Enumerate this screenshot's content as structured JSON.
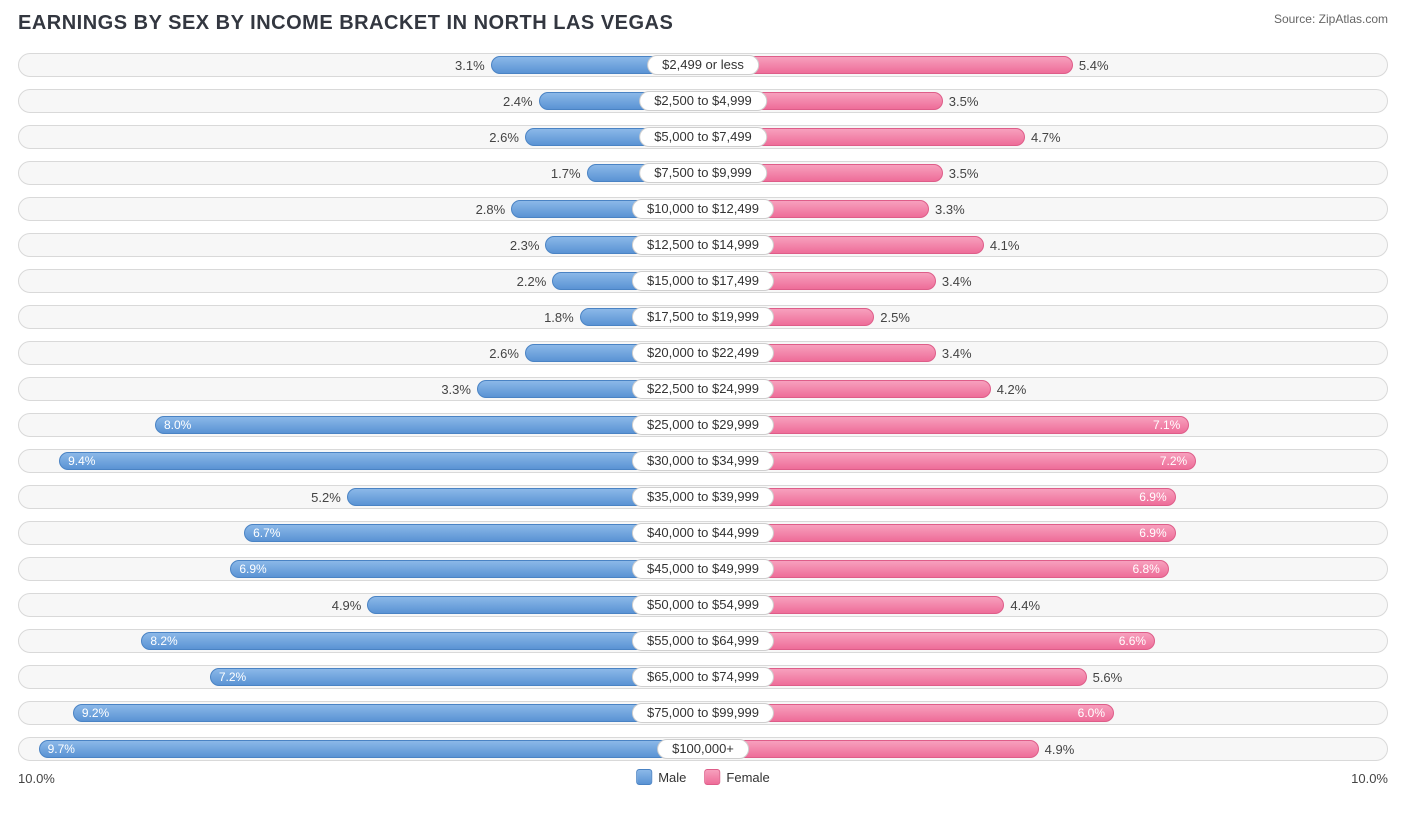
{
  "title": "EARNINGS BY SEX BY INCOME BRACKET IN NORTH LAS VEGAS",
  "source": "Source: ZipAtlas.com",
  "axis_max": 10.0,
  "axis_label_left": "10.0%",
  "axis_label_right": "10.0%",
  "legend": {
    "male": "Male",
    "female": "Female"
  },
  "colors": {
    "male_fill_top": "#8bb8e8",
    "male_fill_bottom": "#5a93d4",
    "male_border": "#4a83c4",
    "female_fill_top": "#f7a0bd",
    "female_fill_bottom": "#ee6d99",
    "female_border": "#de5d89",
    "track_bg": "#f7f7f7",
    "track_border": "#d9d9d9",
    "label_bg": "#ffffff",
    "label_border": "#cfcfcf",
    "text": "#333740"
  },
  "inner_label_threshold": 6.0,
  "rows": [
    {
      "label": "$2,499 or less",
      "male": 3.1,
      "female": 5.4
    },
    {
      "label": "$2,500 to $4,999",
      "male": 2.4,
      "female": 3.5
    },
    {
      "label": "$5,000 to $7,499",
      "male": 2.6,
      "female": 4.7
    },
    {
      "label": "$7,500 to $9,999",
      "male": 1.7,
      "female": 3.5
    },
    {
      "label": "$10,000 to $12,499",
      "male": 2.8,
      "female": 3.3
    },
    {
      "label": "$12,500 to $14,999",
      "male": 2.3,
      "female": 4.1
    },
    {
      "label": "$15,000 to $17,499",
      "male": 2.2,
      "female": 3.4
    },
    {
      "label": "$17,500 to $19,999",
      "male": 1.8,
      "female": 2.5
    },
    {
      "label": "$20,000 to $22,499",
      "male": 2.6,
      "female": 3.4
    },
    {
      "label": "$22,500 to $24,999",
      "male": 3.3,
      "female": 4.2
    },
    {
      "label": "$25,000 to $29,999",
      "male": 8.0,
      "female": 7.1
    },
    {
      "label": "$30,000 to $34,999",
      "male": 9.4,
      "female": 7.2
    },
    {
      "label": "$35,000 to $39,999",
      "male": 5.2,
      "female": 6.9
    },
    {
      "label": "$40,000 to $44,999",
      "male": 6.7,
      "female": 6.9
    },
    {
      "label": "$45,000 to $49,999",
      "male": 6.9,
      "female": 6.8
    },
    {
      "label": "$50,000 to $54,999",
      "male": 4.9,
      "female": 4.4
    },
    {
      "label": "$55,000 to $64,999",
      "male": 8.2,
      "female": 6.6
    },
    {
      "label": "$65,000 to $74,999",
      "male": 7.2,
      "female": 5.6
    },
    {
      "label": "$75,000 to $99,999",
      "male": 9.2,
      "female": 6.0
    },
    {
      "label": "$100,000+",
      "male": 9.7,
      "female": 4.9
    }
  ]
}
